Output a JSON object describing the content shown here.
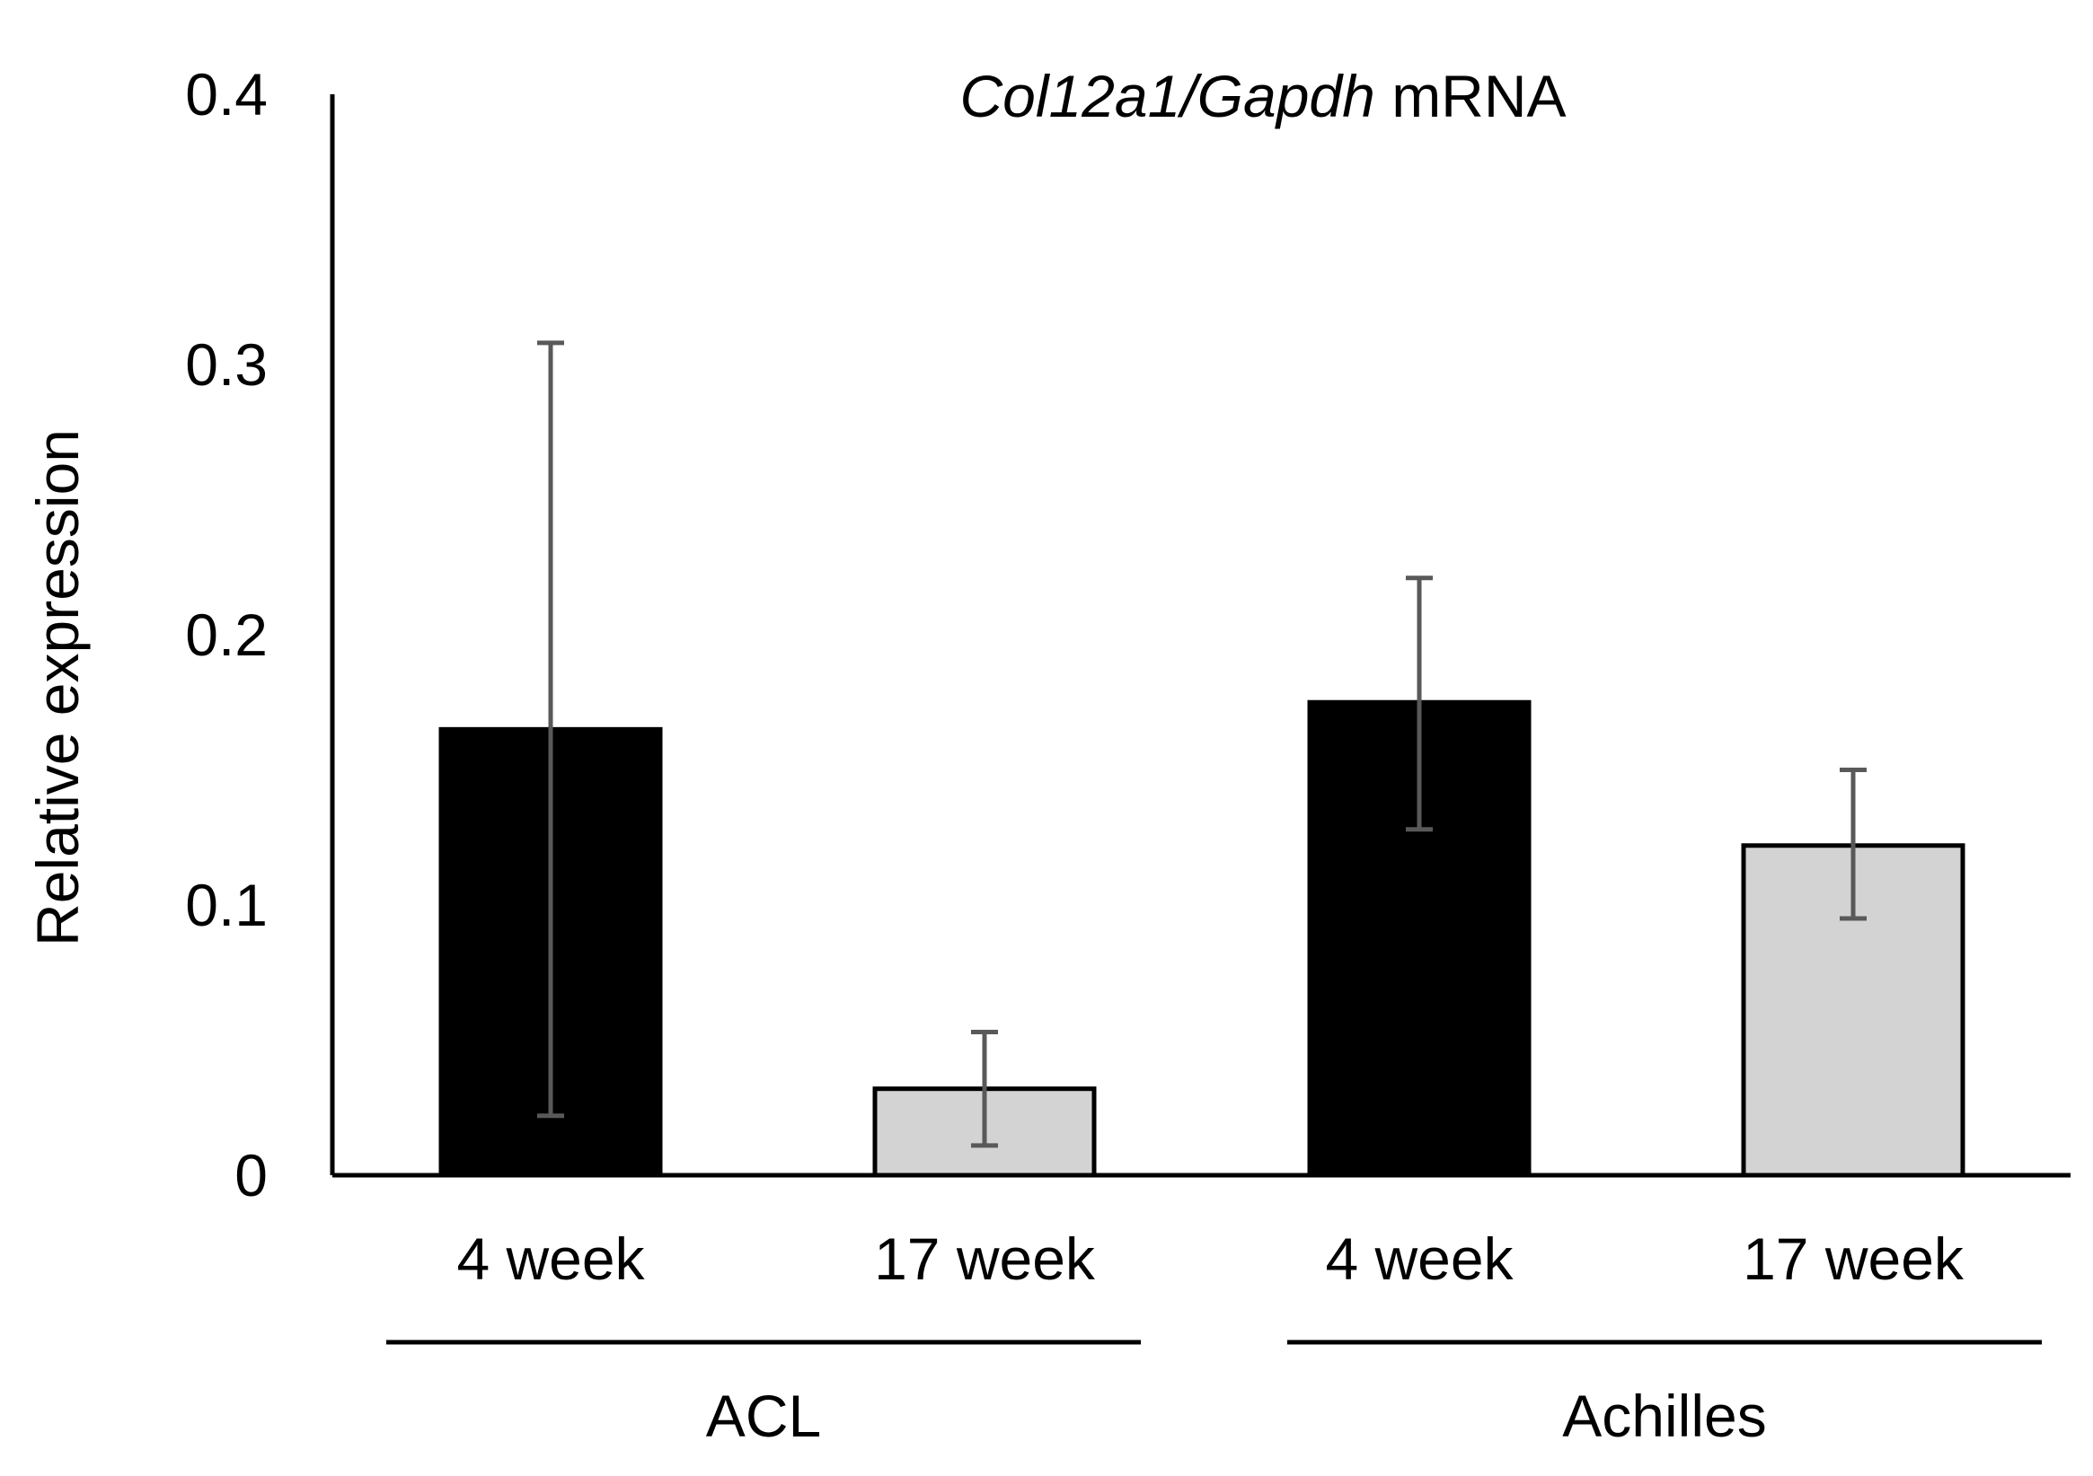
{
  "chart_data": {
    "type": "bar",
    "title": {
      "gene": "Col12a1/Gapdh",
      "suffix": "mRNA"
    },
    "xlabel": "",
    "ylabel": "Relative expression",
    "ylim": [
      0,
      0.4
    ],
    "yticks": [
      {
        "value": 0,
        "label": "0"
      },
      {
        "value": 0.1,
        "label": "0.1"
      },
      {
        "value": 0.2,
        "label": "0.2"
      },
      {
        "value": 0.3,
        "label": "0.3"
      },
      {
        "value": 0.4,
        "label": "0.4"
      }
    ],
    "grid": false,
    "groups": [
      {
        "name": "ACL",
        "categories": [
          "4 week",
          "17 week"
        ]
      },
      {
        "name": "Achilles",
        "categories": [
          "4 week",
          "17 week"
        ]
      }
    ],
    "bars": [
      {
        "group": "ACL",
        "category": "4 week",
        "value": 0.165,
        "err_low": 0.022,
        "err_high": 0.308,
        "color": "#000000"
      },
      {
        "group": "ACL",
        "category": "17 week",
        "value": 0.032,
        "err_low": 0.011,
        "err_high": 0.053,
        "color": "#d3d3d3"
      },
      {
        "group": "Achilles",
        "category": "4 week",
        "value": 0.175,
        "err_low": 0.128,
        "err_high": 0.221,
        "color": "#000000"
      },
      {
        "group": "Achilles",
        "category": "17 week",
        "value": 0.122,
        "err_low": 0.095,
        "err_high": 0.15,
        "color": "#d3d3d3"
      }
    ],
    "colors": {
      "week4": "#000000",
      "week17": "#d3d3d3",
      "errorbar": "#595959",
      "axis": "#000000"
    }
  }
}
